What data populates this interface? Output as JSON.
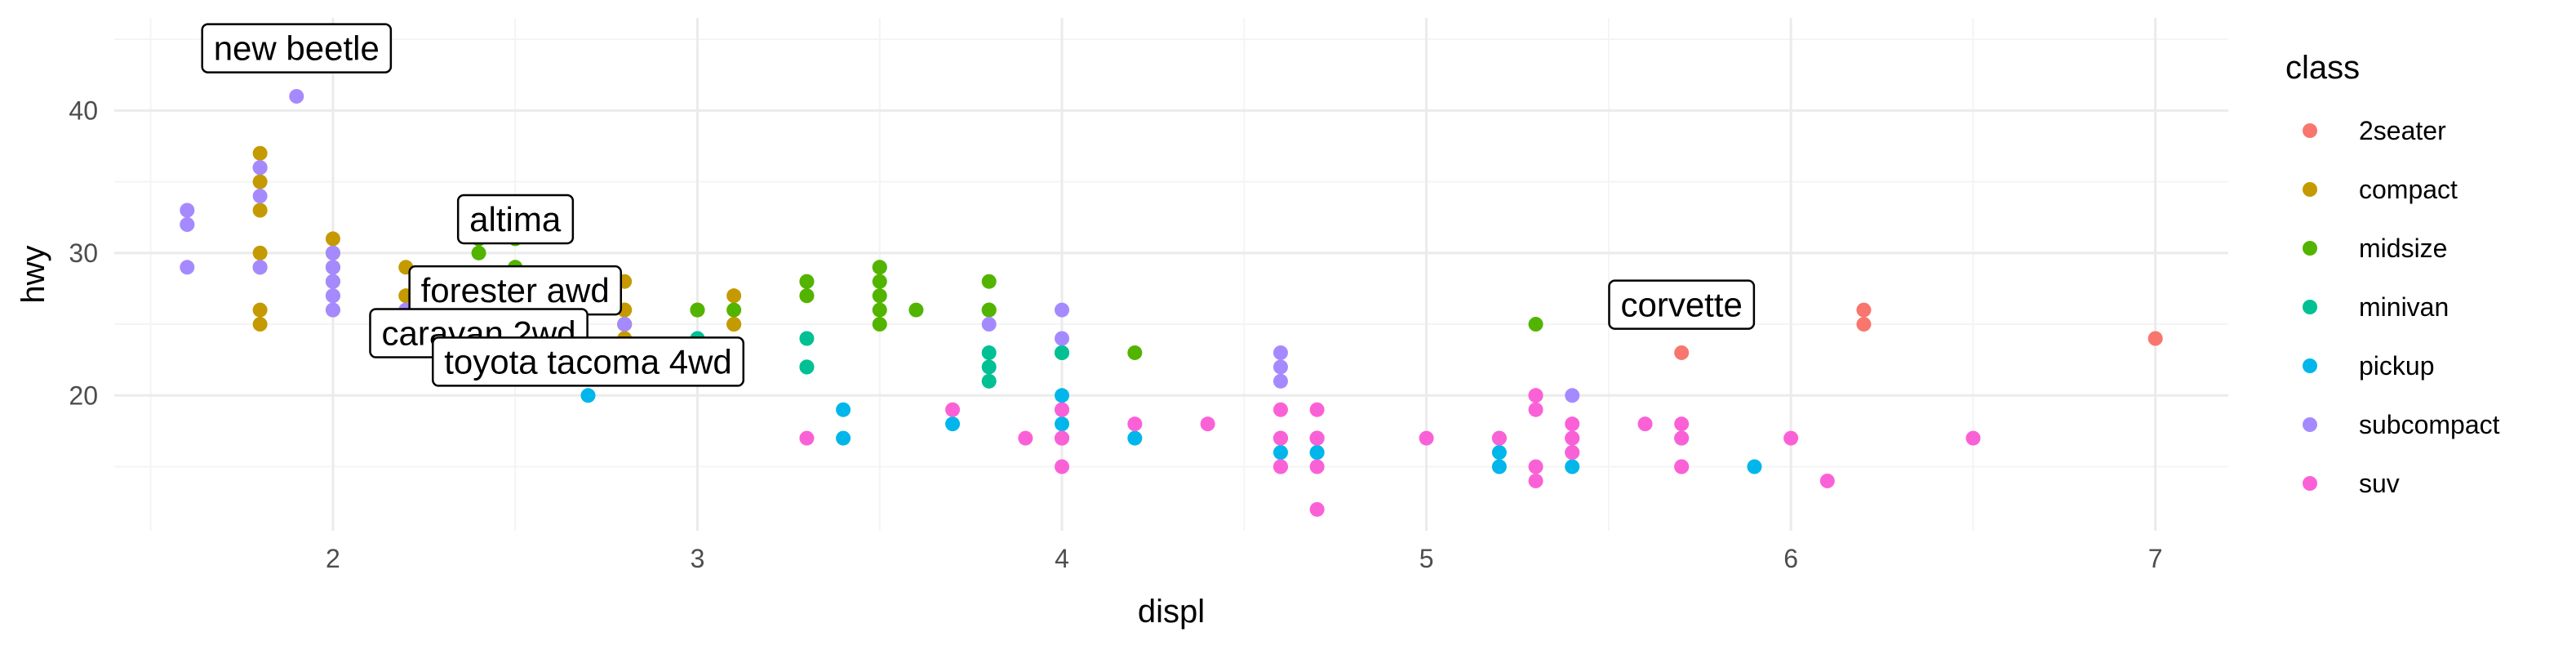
{
  "chart_data": {
    "type": "scatter",
    "xlabel": "displ",
    "ylabel": "hwy",
    "xlim": [
      1.4,
      7.2
    ],
    "ylim": [
      10.5,
      46.5
    ],
    "x_ticks": [
      2,
      3,
      4,
      5,
      6,
      7
    ],
    "y_ticks": [
      20,
      30,
      40
    ],
    "grid": true,
    "legend": {
      "title": "class",
      "position": "right",
      "entries": [
        {
          "name": "2seater",
          "color": "#F8766D"
        },
        {
          "name": "compact",
          "color": "#C49A00"
        },
        {
          "name": "midsize",
          "color": "#53B400"
        },
        {
          "name": "minivan",
          "color": "#00C094"
        },
        {
          "name": "pickup",
          "color": "#00B6EB"
        },
        {
          "name": "subcompact",
          "color": "#A58AFF"
        },
        {
          "name": "suv",
          "color": "#FB61D7"
        }
      ]
    },
    "series": [
      {
        "name": "2seater",
        "color": "#F8766D",
        "points": [
          [
            5.7,
            26
          ],
          [
            5.7,
            23
          ],
          [
            6.2,
            26
          ],
          [
            6.2,
            25
          ],
          [
            7.0,
            24
          ]
        ]
      },
      {
        "name": "compact",
        "color": "#C49A00",
        "points": [
          [
            1.8,
            29
          ],
          [
            1.8,
            29
          ],
          [
            2.0,
            31
          ],
          [
            2.0,
            30
          ],
          [
            2.8,
            26
          ],
          [
            2.8,
            26
          ],
          [
            3.1,
            27
          ],
          [
            1.8,
            26
          ],
          [
            1.8,
            25
          ],
          [
            2.0,
            28
          ],
          [
            2.0,
            28
          ],
          [
            2.8,
            25
          ],
          [
            2.8,
            25
          ],
          [
            3.1,
            25
          ],
          [
            3.1,
            25
          ],
          [
            2.2,
            27
          ],
          [
            2.2,
            29
          ],
          [
            2.4,
            31
          ],
          [
            2.4,
            31
          ],
          [
            3.0,
            26
          ],
          [
            3.0,
            26
          ],
          [
            3.3,
            27
          ],
          [
            1.8,
            37
          ],
          [
            1.8,
            35
          ],
          [
            1.8,
            33
          ],
          [
            1.8,
            30
          ],
          [
            2.0,
            26
          ],
          [
            2.5,
            26
          ],
          [
            2.5,
            24
          ],
          [
            2.8,
            23
          ],
          [
            2.8,
            24
          ],
          [
            2.5,
            29
          ],
          [
            2.5,
            27
          ],
          [
            2.0,
            29
          ],
          [
            2.0,
            29
          ],
          [
            2.8,
            28
          ],
          [
            2.0,
            30
          ]
        ]
      },
      {
        "name": "midsize",
        "color": "#53B400",
        "points": [
          [
            2.4,
            27
          ],
          [
            2.4,
            30
          ],
          [
            3.1,
            26
          ],
          [
            3.5,
            29
          ],
          [
            3.6,
            26
          ],
          [
            2.4,
            26
          ],
          [
            3.0,
            26
          ],
          [
            3.3,
            28
          ],
          [
            3.3,
            27
          ],
          [
            3.3,
            28
          ],
          [
            3.8,
            28
          ],
          [
            3.8,
            26
          ],
          [
            3.8,
            26
          ],
          [
            4.0,
            23
          ],
          [
            2.5,
            27
          ],
          [
            2.5,
            24
          ],
          [
            3.5,
            26
          ],
          [
            3.5,
            25
          ],
          [
            2.4,
            31
          ],
          [
            2.4,
            31
          ],
          [
            3.5,
            29
          ],
          [
            2.5,
            32
          ],
          [
            2.5,
            31
          ],
          [
            3.5,
            27
          ],
          [
            2.5,
            29
          ],
          [
            3.5,
            28
          ],
          [
            4.2,
            23
          ],
          [
            5.3,
            25
          ],
          [
            2.8,
            25
          ]
        ]
      },
      {
        "name": "minivan",
        "color": "#00C094",
        "points": [
          [
            2.4,
            24
          ],
          [
            3.0,
            24
          ],
          [
            3.3,
            22
          ],
          [
            3.3,
            22
          ],
          [
            3.3,
            24
          ],
          [
            3.8,
            22
          ],
          [
            3.8,
            23
          ],
          [
            3.8,
            21
          ],
          [
            4.0,
            23
          ],
          [
            4.0,
            23
          ],
          [
            2.4,
            24
          ]
        ]
      },
      {
        "name": "pickup",
        "color": "#00B6EB",
        "points": [
          [
            2.7,
            20
          ],
          [
            2.7,
            22
          ],
          [
            2.7,
            22
          ],
          [
            3.4,
            17
          ],
          [
            3.4,
            19
          ],
          [
            3.7,
            18
          ],
          [
            4.0,
            17
          ],
          [
            4.0,
            19
          ],
          [
            4.0,
            20
          ],
          [
            4.7,
            16
          ],
          [
            4.7,
            16
          ],
          [
            4.7,
            17
          ],
          [
            5.2,
            16
          ],
          [
            5.2,
            15
          ],
          [
            5.7,
            17
          ],
          [
            5.9,
            15
          ],
          [
            4.2,
            17
          ],
          [
            4.6,
            17
          ],
          [
            4.6,
            16
          ],
          [
            5.4,
            15
          ],
          [
            5.2,
            17
          ],
          [
            4.0,
            18
          ],
          [
            4.7,
            17
          ],
          [
            5.4,
            16
          ]
        ]
      },
      {
        "name": "subcompact",
        "color": "#A58AFF",
        "points": [
          [
            1.6,
            33
          ],
          [
            1.6,
            32
          ],
          [
            1.6,
            29
          ],
          [
            1.6,
            32
          ],
          [
            1.8,
            34
          ],
          [
            1.8,
            36
          ],
          [
            1.8,
            36
          ],
          [
            2.0,
            29
          ],
          [
            2.4,
            24
          ],
          [
            2.4,
            24
          ],
          [
            2.5,
            26
          ],
          [
            1.8,
            29
          ],
          [
            1.9,
            44
          ],
          [
            1.9,
            41
          ],
          [
            2.0,
            29
          ],
          [
            2.0,
            26
          ],
          [
            2.5,
            25
          ],
          [
            2.5,
            27
          ],
          [
            2.0,
            28
          ],
          [
            2.0,
            27
          ],
          [
            2.2,
            26
          ],
          [
            2.8,
            25
          ],
          [
            3.8,
            25
          ],
          [
            4.0,
            24
          ],
          [
            4.6,
            21
          ],
          [
            4.6,
            22
          ],
          [
            4.6,
            23
          ],
          [
            5.4,
            20
          ],
          [
            4.0,
            26
          ],
          [
            2.5,
            24
          ],
          [
            2.5,
            24
          ],
          [
            1.8,
            36
          ],
          [
            2.0,
            30
          ],
          [
            2.0,
            29
          ],
          [
            2.0,
            27
          ]
        ]
      },
      {
        "name": "suv",
        "color": "#FB61D7",
        "points": [
          [
            5.3,
            20
          ],
          [
            5.3,
            15
          ],
          [
            5.3,
            20
          ],
          [
            5.7,
            17
          ],
          [
            6.0,
            17
          ],
          [
            5.7,
            15
          ],
          [
            5.7,
            18
          ],
          [
            6.5,
            17
          ],
          [
            4.7,
            17
          ],
          [
            4.7,
            19
          ],
          [
            4.7,
            17
          ],
          [
            5.2,
            17
          ],
          [
            4.7,
            12
          ],
          [
            4.7,
            15
          ],
          [
            5.7,
            15
          ],
          [
            6.1,
            14
          ],
          [
            5.3,
            14
          ],
          [
            4.6,
            15
          ],
          [
            5.4,
            17
          ],
          [
            5.4,
            18
          ],
          [
            5.4,
            17
          ],
          [
            4.0,
            17
          ],
          [
            4.0,
            19
          ],
          [
            4.0,
            17
          ],
          [
            4.0,
            15
          ],
          [
            4.4,
            18
          ],
          [
            4.6,
            19
          ],
          [
            4.6,
            17
          ],
          [
            5.4,
            16
          ],
          [
            4.6,
            17
          ],
          [
            5.6,
            18
          ],
          [
            3.9,
            17
          ],
          [
            4.7,
            17
          ],
          [
            5.0,
            17
          ],
          [
            3.7,
            19
          ],
          [
            3.0,
            22
          ],
          [
            3.0,
            23
          ],
          [
            3.3,
            17
          ],
          [
            4.2,
            18
          ],
          [
            4.6,
            15
          ],
          [
            5.3,
            19
          ]
        ]
      }
    ],
    "annotations": [
      {
        "text": "new beetle",
        "x": 1.9,
        "y": 44
      },
      {
        "text": "altima",
        "x": 2.5,
        "y": 32
      },
      {
        "text": "forester awd",
        "x": 2.5,
        "y": 27
      },
      {
        "text": "caravan 2wd",
        "x": 2.4,
        "y": 24
      },
      {
        "text": "toyota tacoma 4wd",
        "x": 2.7,
        "y": 22
      },
      {
        "text": "corvette",
        "x": 5.7,
        "y": 26
      }
    ]
  }
}
